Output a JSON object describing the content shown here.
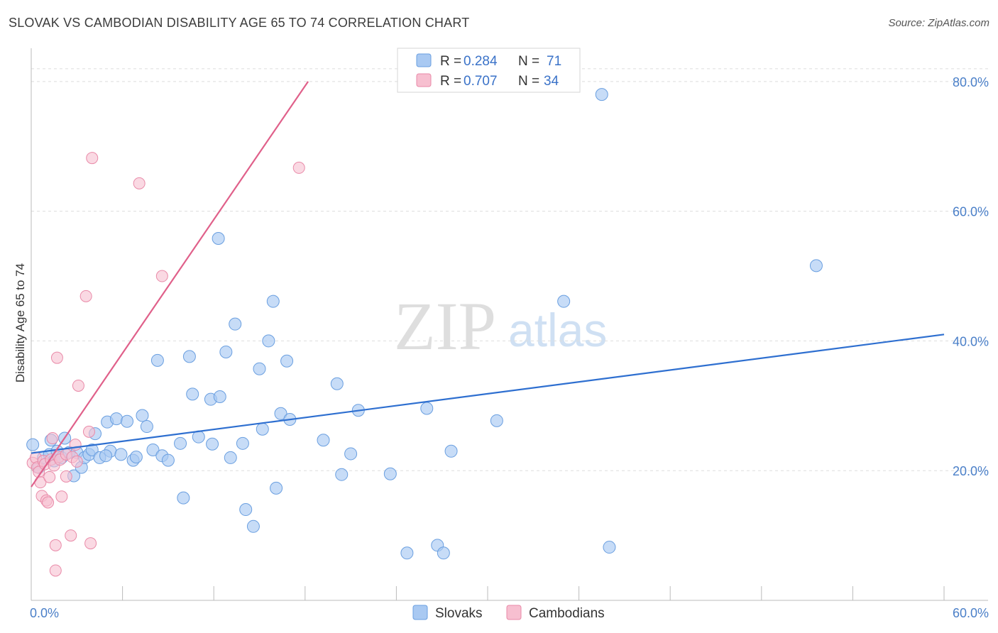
{
  "title": "SLOVAK VS CAMBODIAN DISABILITY AGE 65 TO 74 CORRELATION CHART",
  "source": "Source: ZipAtlas.com",
  "watermark": {
    "zip": "ZIP",
    "atlas": "atlas"
  },
  "colors": {
    "slovak_fill": "#a9c9f2",
    "slovak_stroke": "#6a9fe0",
    "slovak_line": "#2e6fd0",
    "cambodian_fill": "#f7bfd0",
    "cambodian_stroke": "#e98aa8",
    "cambodian_line": "#e0608a",
    "tick_text": "#4a7fc8",
    "grid": "#dddddd"
  },
  "legend": {
    "rows": [
      {
        "r_label": "R = ",
        "r_value": "0.284",
        "n_label": "N = ",
        "n_value": "71"
      },
      {
        "r_label": "R = ",
        "r_value": "0.707",
        "n_label": "N = ",
        "n_value": "34"
      }
    ]
  },
  "bottom_legend": [
    "Slovaks",
    "Cambodians"
  ],
  "chart_data": {
    "type": "scatter",
    "title": "SLOVAK VS CAMBODIAN DISABILITY AGE 65 TO 74 CORRELATION CHART",
    "ylabel": "Disability Age 65 to 74",
    "xlabel": "",
    "xlim": [
      0,
      60
    ],
    "ylim": [
      0,
      86
    ],
    "x_tick_labels": [
      {
        "value": 0,
        "label": "0.0%"
      },
      {
        "value": 60,
        "label": "60.0%"
      }
    ],
    "y_tick_labels": [
      {
        "value": 20,
        "label": "20.0%"
      },
      {
        "value": 40,
        "label": "40.0%"
      },
      {
        "value": 60,
        "label": "60.0%"
      },
      {
        "value": 80,
        "label": "80.0%"
      }
    ],
    "grid": true,
    "legend_position": "top-center",
    "series": [
      {
        "name": "Slovaks",
        "r": 0.284,
        "n": 71,
        "trend": [
          [
            0,
            22.7
          ],
          [
            60,
            41.0
          ]
        ],
        "points": [
          [
            0.1,
            24.0
          ],
          [
            0.5,
            20.5
          ],
          [
            0.8,
            22.0
          ],
          [
            1.2,
            22.5
          ],
          [
            1.5,
            21.5
          ],
          [
            1.7,
            23.0
          ],
          [
            2.0,
            22.0
          ],
          [
            2.2,
            25.0
          ],
          [
            2.5,
            22.8
          ],
          [
            2.8,
            19.2
          ],
          [
            3.0,
            22.8
          ],
          [
            3.3,
            20.5
          ],
          [
            3.5,
            22.0
          ],
          [
            3.8,
            22.5
          ],
          [
            4.0,
            23.2
          ],
          [
            4.2,
            25.7
          ],
          [
            4.5,
            22.0
          ],
          [
            5.0,
            27.5
          ],
          [
            5.2,
            23.0
          ],
          [
            5.6,
            28.0
          ],
          [
            5.9,
            22.5
          ],
          [
            6.3,
            27.6
          ],
          [
            6.7,
            21.6
          ],
          [
            6.9,
            22.1
          ],
          [
            7.3,
            28.5
          ],
          [
            7.6,
            26.8
          ],
          [
            8.0,
            23.2
          ],
          [
            8.3,
            37.0
          ],
          [
            8.6,
            22.3
          ],
          [
            9.0,
            21.6
          ],
          [
            9.8,
            24.2
          ],
          [
            10.0,
            15.8
          ],
          [
            10.4,
            37.6
          ],
          [
            10.6,
            31.8
          ],
          [
            11.0,
            25.2
          ],
          [
            11.8,
            31.0
          ],
          [
            11.9,
            24.1
          ],
          [
            12.3,
            55.8
          ],
          [
            12.4,
            31.4
          ],
          [
            12.8,
            38.3
          ],
          [
            13.1,
            22.0
          ],
          [
            13.4,
            42.6
          ],
          [
            13.9,
            24.2
          ],
          [
            14.1,
            14.0
          ],
          [
            14.6,
            11.4
          ],
          [
            15.0,
            35.7
          ],
          [
            15.2,
            26.4
          ],
          [
            15.6,
            40.0
          ],
          [
            15.9,
            46.1
          ],
          [
            16.1,
            17.3
          ],
          [
            16.4,
            28.8
          ],
          [
            16.8,
            36.9
          ],
          [
            17.0,
            27.9
          ],
          [
            19.2,
            24.7
          ],
          [
            20.1,
            33.4
          ],
          [
            20.4,
            19.4
          ],
          [
            21.0,
            22.6
          ],
          [
            21.5,
            29.3
          ],
          [
            23.6,
            19.5
          ],
          [
            24.7,
            7.3
          ],
          [
            26.0,
            29.6
          ],
          [
            26.7,
            8.5
          ],
          [
            27.1,
            7.3
          ],
          [
            27.6,
            23.0
          ],
          [
            30.6,
            27.7
          ],
          [
            35.0,
            46.1
          ],
          [
            37.5,
            78.0
          ],
          [
            38.0,
            8.2
          ],
          [
            51.6,
            51.6
          ],
          [
            1.3,
            24.7
          ],
          [
            4.9,
            22.3
          ]
        ]
      },
      {
        "name": "Cambodians",
        "r": 0.707,
        "n": 34,
        "trend": [
          [
            0,
            17.5
          ],
          [
            18.2,
            80.0
          ]
        ],
        "points": [
          [
            0.1,
            21.2
          ],
          [
            0.3,
            22.0
          ],
          [
            0.4,
            20.5
          ],
          [
            0.5,
            19.8
          ],
          [
            0.6,
            18.2
          ],
          [
            0.7,
            16.1
          ],
          [
            0.8,
            21.5
          ],
          [
            0.9,
            21.0
          ],
          [
            1.0,
            15.4
          ],
          [
            1.1,
            15.1
          ],
          [
            1.2,
            19.0
          ],
          [
            1.3,
            21.7
          ],
          [
            1.4,
            25.0
          ],
          [
            1.5,
            20.8
          ],
          [
            1.6,
            8.5
          ],
          [
            1.6,
            4.6
          ],
          [
            1.7,
            37.4
          ],
          [
            1.8,
            22.1
          ],
          [
            1.9,
            21.7
          ],
          [
            2.0,
            16.0
          ],
          [
            2.3,
            22.5
          ],
          [
            2.3,
            19.1
          ],
          [
            2.6,
            10.0
          ],
          [
            2.7,
            22.1
          ],
          [
            2.9,
            24.0
          ],
          [
            3.0,
            21.4
          ],
          [
            3.1,
            33.1
          ],
          [
            3.6,
            46.9
          ],
          [
            3.8,
            26.0
          ],
          [
            3.9,
            8.8
          ],
          [
            4.0,
            68.2
          ],
          [
            7.1,
            64.3
          ],
          [
            8.6,
            50.0
          ],
          [
            17.6,
            66.7
          ]
        ]
      }
    ]
  }
}
